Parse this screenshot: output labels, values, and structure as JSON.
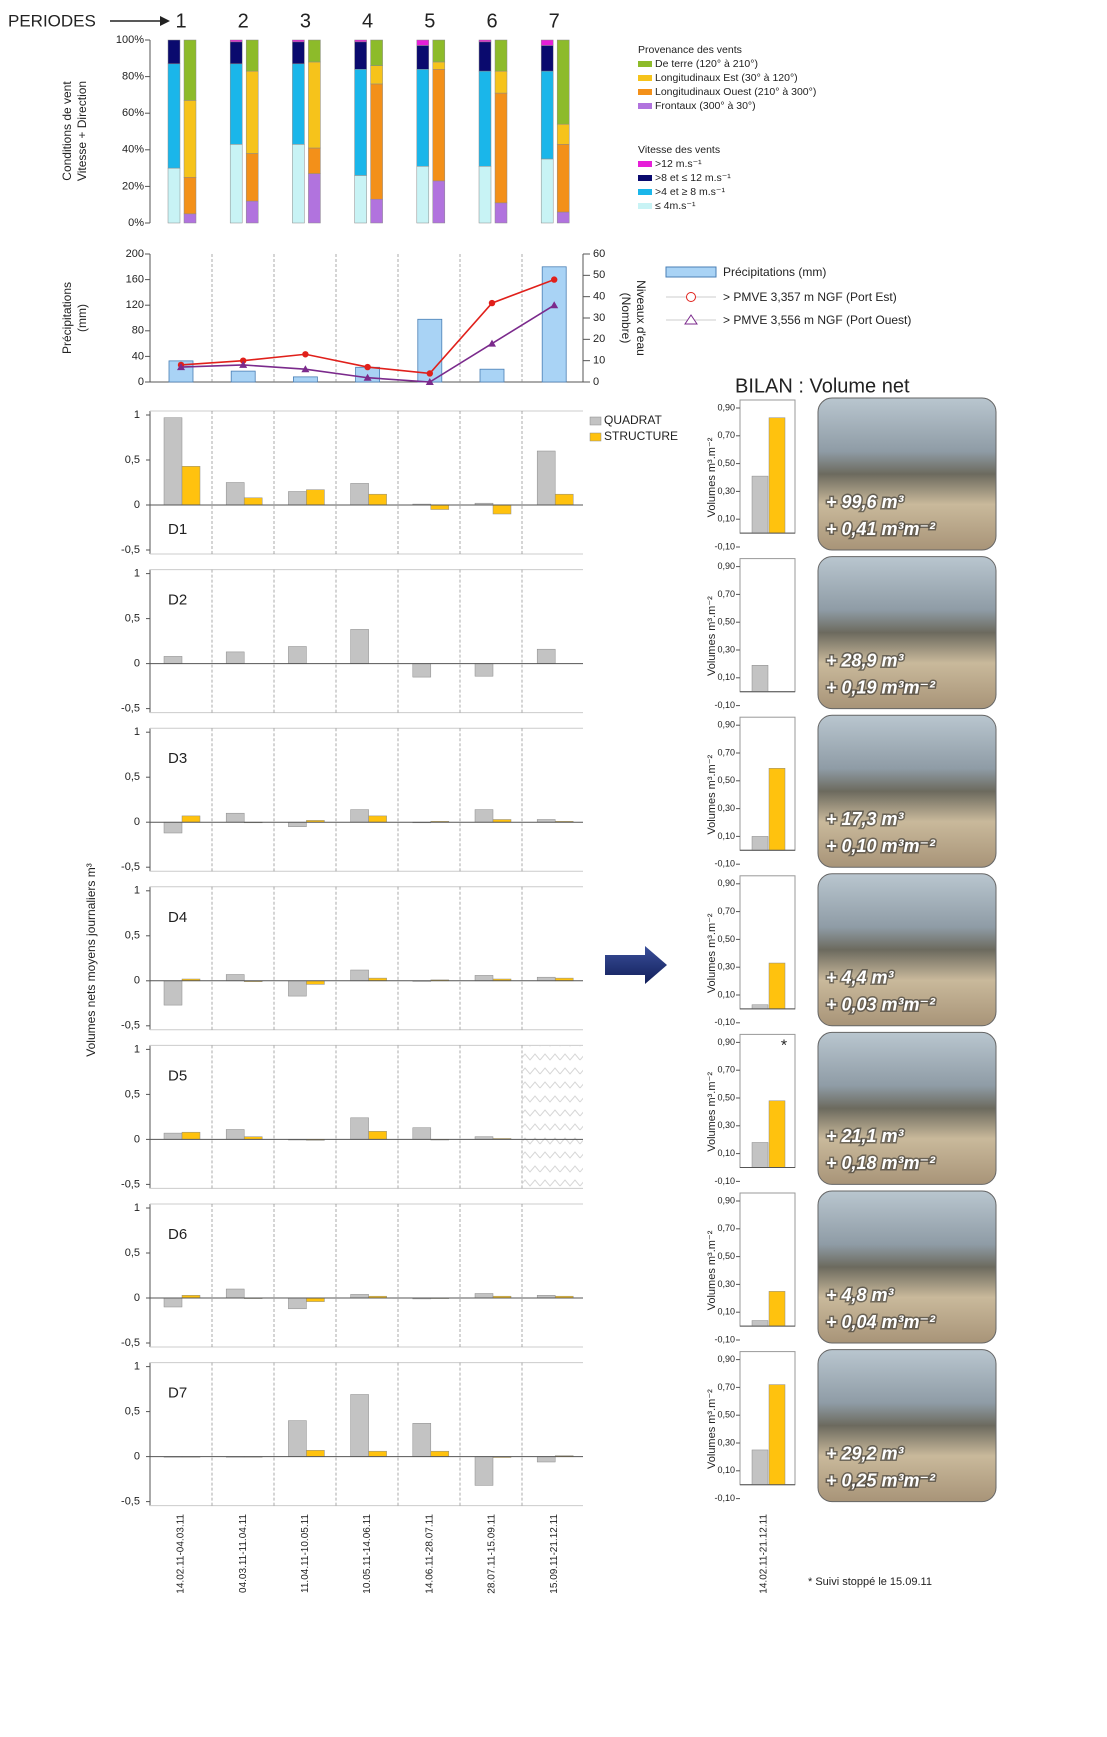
{
  "chart_data": [
    {
      "type": "stacked_bar",
      "x_label": "PERIODES",
      "categories": [
        "1",
        "2",
        "3",
        "4",
        "5",
        "6",
        "7"
      ],
      "ylabel": [
        "Conditions de vent",
        "Vitesse + Direction"
      ],
      "ylim": [
        0,
        100
      ],
      "yticks": [
        {
          "value": 0,
          "label": "0%"
        },
        {
          "value": 20,
          "label": "20%"
        },
        {
          "value": 40,
          "label": "40%"
        },
        {
          "value": 60,
          "label": "60%"
        },
        {
          "value": 80,
          "label": "80%"
        },
        {
          "value": 100,
          "label": "100%"
        }
      ],
      "stacks": [
        {
          "legend_title": "Provenance des vents",
          "series": [
            {
              "name": "De terre (120° à 210°)",
              "color": "#8dbb2a",
              "values": [
                33,
                17,
                12,
                14,
                12,
                17,
                46
              ]
            },
            {
              "name": "Longitudinaux Est (30° à 120°)",
              "color": "#f6c31b",
              "values": [
                42,
                45,
                47,
                10,
                4,
                12,
                11
              ]
            },
            {
              "name": "Longitudinaux Ouest (210° à 300°)",
              "color": "#f39019",
              "values": [
                20,
                26,
                14,
                63,
                61,
                60,
                37
              ]
            },
            {
              "name": "Frontaux (300° à 30°)",
              "color": "#b173de",
              "values": [
                5,
                12,
                27,
                13,
                23,
                11,
                6
              ]
            }
          ]
        },
        {
          "legend_title": "Vitesse des vents",
          "series": [
            {
              "name": ">12 m.s⁻¹",
              "color": "#e61fd8",
              "values": [
                0,
                1,
                1,
                1,
                3,
                1,
                3
              ]
            },
            {
              "name": ">8 et ≤ 12 m.s⁻¹",
              "color": "#0a0a6e",
              "values": [
                13,
                12,
                12,
                15,
                13,
                16,
                14
              ]
            },
            {
              "name": ">4 et ≥ 8 m.s⁻¹",
              "color": "#1ab6ea",
              "values": [
                57,
                44,
                44,
                58,
                53,
                52,
                48
              ]
            },
            {
              "name": "≤ 4m.s⁻¹",
              "color": "#c8f3f5",
              "values": [
                30,
                43,
                43,
                26,
                31,
                31,
                35
              ]
            }
          ]
        }
      ]
    },
    {
      "type": "bar_line",
      "ylabel": [
        "Précipitations",
        "(mm)"
      ],
      "y2label": [
        "Niveaux d'eau",
        "(Nombre)"
      ],
      "ylim": [
        0,
        200
      ],
      "yticks": [
        0,
        40,
        80,
        120,
        160,
        200
      ],
      "y2lim": [
        0,
        60
      ],
      "y2ticks": [
        0,
        10,
        20,
        30,
        40,
        50,
        60
      ],
      "series": [
        {
          "name": "Précipitations (mm)",
          "type": "bar",
          "color": "#a9d3f5",
          "values": [
            33,
            17,
            8,
            23,
            98,
            20,
            180
          ]
        },
        {
          "name": "> PMVE 3,357 m NGF (Port Est)",
          "type": "line",
          "marker": "circle",
          "axis": "y2",
          "color": "#e0201b",
          "values": [
            8,
            10,
            13,
            7,
            4,
            37,
            48
          ]
        },
        {
          "name": "> PMVE 3,556 m NGF (Port Ouest)",
          "type": "line",
          "marker": "triangle",
          "axis": "y2",
          "color": "#7b2a8c",
          "values": [
            7,
            8,
            6,
            2,
            0,
            18,
            36
          ]
        }
      ]
    },
    {
      "type": "bar",
      "ylabel": "Volumes nets moyens journaliers m³",
      "categories": [
        "14.02.11-04.03.11",
        "04.03.11-11.04.11",
        "11.04.11-10.05.11",
        "10.05.11-14.06.11",
        "14.06.11-28.07.11",
        "28.07.11-15.09.11",
        "15.09.11-21.12.11"
      ],
      "ylim": [
        -0.5,
        1
      ],
      "yticks": [
        {
          "value": -0.5,
          "label": "-0,5"
        },
        0,
        {
          "value": 0.5,
          "label": "0,5"
        },
        1
      ],
      "series": [
        {
          "name": "QUADRAT",
          "color": "#c3c3c3"
        },
        {
          "name": "STRUCTURE",
          "color": "#ffc20e"
        }
      ],
      "panels": [
        {
          "title": "D1",
          "values": [
            [
              0.97,
              0.25,
              0.15,
              0.24,
              0.01,
              0.02,
              0.6
            ],
            [
              0.43,
              0.08,
              0.17,
              0.12,
              -0.05,
              -0.1,
              0.12
            ]
          ]
        },
        {
          "title": "D2",
          "values": [
            [
              0.08,
              0.13,
              0.19,
              0.38,
              -0.15,
              -0.14,
              0.16
            ],
            [
              null,
              null,
              null,
              null,
              null,
              null,
              null
            ]
          ]
        },
        {
          "title": "D3",
          "values": [
            [
              -0.12,
              0.1,
              -0.05,
              0.14,
              0,
              0.14,
              0.03
            ],
            [
              0.07,
              0,
              0.02,
              0.07,
              0.01,
              0.03,
              0.01
            ]
          ]
        },
        {
          "title": "D4",
          "values": [
            [
              -0.27,
              0.07,
              -0.17,
              0.12,
              0,
              0.06,
              0.04
            ],
            [
              0.02,
              -0.01,
              -0.04,
              0.03,
              0.01,
              0.02,
              0.03
            ]
          ]
        },
        {
          "title": "D5",
          "values": [
            [
              0.07,
              0.11,
              0,
              0.24,
              0.13,
              0.03,
              null
            ],
            [
              0.08,
              0.03,
              -0.01,
              0.09,
              0,
              0.01,
              null
            ]
          ]
        },
        {
          "title": "D6",
          "values": [
            [
              -0.1,
              0.1,
              -0.12,
              0.04,
              -0.01,
              0.05,
              0.03
            ],
            [
              0.03,
              0,
              -0.04,
              0.02,
              0,
              0.02,
              0.02
            ]
          ]
        },
        {
          "title": "D7",
          "values": [
            [
              0,
              0,
              0.4,
              0.69,
              0.37,
              -0.32,
              -0.06
            ],
            [
              0,
              0,
              0.07,
              0.06,
              0.06,
              -0.01,
              0.01
            ]
          ]
        }
      ]
    },
    {
      "type": "bar",
      "title": "BILAN : Volume net",
      "ylabel": "Volumes m³.m⁻²",
      "categories": [
        "14.02.11-21.12.11"
      ],
      "ylim": [
        -0.1,
        0.9
      ],
      "yticks": [
        {
          "value": -0.1,
          "label": "-0,10"
        },
        {
          "value": 0.1,
          "label": "0,10"
        },
        {
          "value": 0.3,
          "label": "0,30"
        },
        {
          "value": 0.5,
          "label": "0,50"
        },
        {
          "value": 0.7,
          "label": "0,70"
        },
        {
          "value": 0.9,
          "label": "0,90"
        }
      ],
      "series": [
        {
          "name": "QUADRAT",
          "color": "#c3c3c3"
        },
        {
          "name": "STRUCTURE",
          "color": "#ffc20e"
        }
      ],
      "footnote": "* Suivi stoppé le 15.09.11",
      "panels": [
        {
          "values": [
            [
              0.41
            ],
            [
              0.83
            ]
          ],
          "photo_labels": [
            "+ 99,6 m³",
            "+ 0,41 m³m⁻²"
          ]
        },
        {
          "values": [
            [
              0.19
            ],
            [
              null
            ]
          ],
          "photo_labels": [
            "+ 28,9 m³",
            "+ 0,19 m³m⁻²"
          ]
        },
        {
          "values": [
            [
              0.1
            ],
            [
              0.59
            ]
          ],
          "photo_labels": [
            "+ 17,3 m³",
            "+ 0,10 m³m⁻²"
          ]
        },
        {
          "values": [
            [
              0.03
            ],
            [
              0.33
            ]
          ],
          "photo_labels": [
            "+ 4,4 m³",
            "+ 0,03 m³m⁻²"
          ]
        },
        {
          "values": [
            [
              0.18
            ],
            [
              0.48
            ]
          ],
          "photo_labels": [
            "+ 21,1 m³",
            "+ 0,18 m³m⁻²"
          ],
          "note": "*"
        },
        {
          "values": [
            [
              0.04
            ],
            [
              0.25
            ]
          ],
          "photo_labels": [
            "+ 4,8 m³",
            "+ 0,04 m³m⁻²"
          ]
        },
        {
          "values": [
            [
              0.25
            ],
            [
              0.72
            ]
          ],
          "photo_labels": [
            "+ 29,2 m³",
            "+ 0,25 m³m⁻²"
          ]
        }
      ]
    }
  ]
}
